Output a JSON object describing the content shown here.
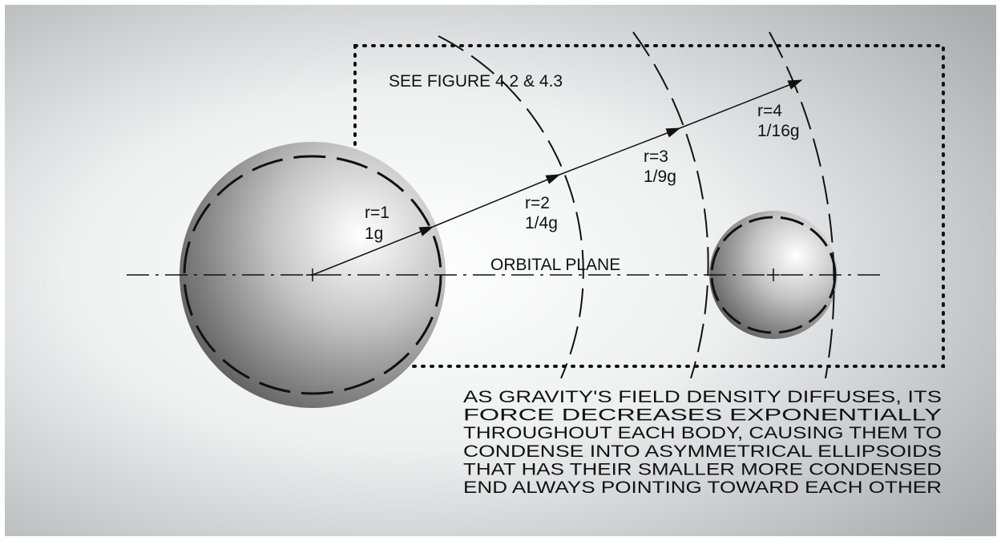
{
  "figure_ref": "SEE FIGURE 4.2 & 4.3",
  "plane_label": "ORBITAL PLANE",
  "rings": [
    {
      "radius": "r=1",
      "force": "1g"
    },
    {
      "radius": "r=2",
      "force": "1/4g"
    },
    {
      "radius": "r=3",
      "force": "1/9g"
    },
    {
      "radius": "r=4",
      "force": "1/16g"
    }
  ],
  "caption": [
    "AS GRAVITY'S FIELD DENSITY DIFFUSES, ITS",
    "FORCE DECREASES EXPONENTIALLY",
    "THROUGHOUT EACH BODY, CAUSING THEM TO",
    "CONDENSE INTO ASYMMETRICAL ELLIPSOIDS",
    "THAT HAS THEIR SMALLER MORE CONDENSED",
    "END ALWAYS POINTING TOWARD EACH OTHER"
  ]
}
